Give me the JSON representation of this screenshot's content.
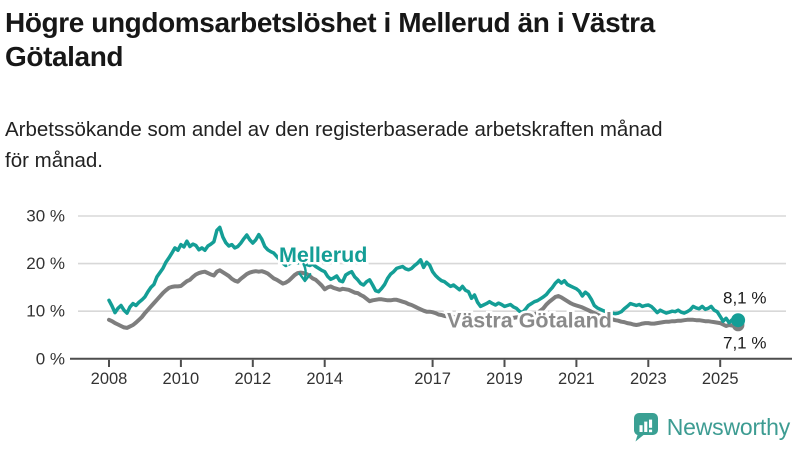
{
  "page": {
    "title_lines": [
      "Högre ungdomsarbetslöshet i Mellerud än i Västra",
      "Götaland"
    ],
    "subtitle_lines": [
      "Arbetssökande som andel av den registerbaserade arbetskraften månad",
      "för månad."
    ]
  },
  "chart_data": {
    "type": "line",
    "title": "Högre ungdomsarbetslöshet i Mellerud än i Västra Götaland",
    "subtitle": "Arbetssökande som andel av den registerbaserade arbetskraften månad för månad.",
    "unit": "%",
    "frequency": "monthly",
    "x_start": "2008-01",
    "x_end": "2025-07",
    "ylim": [
      0,
      30
    ],
    "grid": "horizontal",
    "legend_position": "inline-labels",
    "y_tick_labels": [
      "0 %",
      "10 %",
      "20 %",
      "30 %"
    ],
    "x_tick_years": [
      2008,
      2010,
      2012,
      2014,
      2017,
      2019,
      2021,
      2023,
      2025
    ],
    "x_tick_labels": [
      "2008",
      "2010",
      "2012",
      "2014",
      "2017",
      "2019",
      "2021",
      "2023",
      "2025"
    ],
    "series": [
      {
        "name": "Mellerud",
        "color": "#149e96",
        "end_value": 8.1,
        "end_label": "8,1 %",
        "values": [
          12.3,
          11.1,
          9.7,
          10.6,
          11.2,
          10.2,
          9.6,
          10.9,
          11.6,
          11.2,
          11.9,
          12.4,
          13.0,
          14.1,
          15.0,
          15.6,
          17.2,
          18.1,
          19.0,
          20.3,
          21.2,
          22.2,
          23.3,
          22.8,
          24.0,
          23.5,
          24.7,
          23.6,
          24.1,
          23.8,
          22.9,
          23.3,
          22.8,
          23.7,
          24.1,
          24.6,
          27.0,
          27.6,
          25.6,
          24.4,
          23.7,
          24.0,
          23.3,
          23.6,
          24.3,
          25.2,
          26.0,
          25.0,
          24.3,
          25.0,
          26.1,
          25.1,
          23.6,
          22.9,
          22.5,
          22.2,
          21.5,
          20.8,
          20.1,
          19.6,
          19.9,
          20.2,
          20.5,
          20.1,
          20.8,
          20.4,
          19.8,
          19.6,
          19.9,
          19.4,
          19.0,
          18.6,
          18.3,
          17.3,
          16.7,
          17.0,
          17.4,
          16.4,
          16.2,
          17.6,
          18.0,
          18.3,
          17.2,
          16.6,
          15.8,
          15.5,
          16.2,
          16.6,
          15.5,
          14.3,
          14.1,
          14.8,
          15.6,
          16.9,
          17.8,
          18.3,
          19.0,
          19.2,
          19.4,
          18.9,
          18.7,
          19.0,
          19.6,
          20.1,
          20.8,
          19.2,
          20.3,
          19.7,
          18.3,
          17.5,
          16.9,
          16.4,
          16.2,
          15.7,
          15.2,
          15.5,
          15.0,
          14.5,
          15.2,
          14.4,
          14.1,
          12.7,
          13.4,
          11.9,
          11.0,
          11.3,
          11.6,
          12.0,
          11.6,
          11.3,
          11.7,
          11.4,
          11.0,
          11.2,
          11.4,
          10.9,
          10.6,
          10.0,
          9.7,
          10.4,
          11.2,
          11.6,
          12.0,
          12.2,
          12.6,
          13.0,
          13.5,
          14.3,
          15.0,
          15.9,
          16.5,
          15.9,
          16.4,
          15.6,
          15.3,
          15.0,
          14.7,
          14.2,
          13.2,
          14.0,
          13.5,
          12.5,
          11.2,
          10.7,
          10.4,
          10.1,
          9.9,
          9.7,
          9.6,
          9.5,
          9.6,
          9.9,
          10.5,
          11.0,
          11.6,
          11.4,
          11.2,
          11.4,
          11.0,
          11.2,
          11.3,
          11.0,
          10.4,
          9.7,
          10.2,
          9.9,
          9.6,
          9.8,
          10.0,
          9.9,
          10.2,
          9.8,
          9.6,
          9.9,
          10.3,
          11.0,
          10.7,
          10.5,
          11.0,
          10.4,
          10.6,
          11.0,
          10.2,
          9.9,
          8.9,
          7.9,
          8.5,
          7.6,
          8.2,
          8.0,
          8.1
        ]
      },
      {
        "name": "Västra Götaland",
        "color": "#7e7e7e",
        "end_value": 7.1,
        "end_label": "7,1 %",
        "values": [
          8.2,
          7.9,
          7.5,
          7.2,
          6.9,
          6.6,
          6.5,
          6.8,
          7.1,
          7.6,
          8.2,
          8.8,
          9.6,
          10.3,
          11.0,
          11.7,
          12.4,
          13.1,
          13.8,
          14.4,
          14.9,
          15.1,
          15.2,
          15.2,
          15.3,
          15.8,
          16.3,
          16.6,
          17.2,
          17.7,
          18.0,
          18.2,
          18.3,
          18.0,
          17.7,
          17.5,
          18.3,
          18.6,
          18.2,
          17.8,
          17.4,
          16.8,
          16.4,
          16.2,
          16.8,
          17.3,
          17.8,
          18.1,
          18.3,
          18.4,
          18.3,
          18.4,
          18.2,
          17.9,
          17.4,
          16.9,
          16.6,
          16.2,
          15.8,
          16.0,
          16.4,
          17.0,
          17.6,
          18.0,
          18.1,
          18.0,
          17.8,
          17.4,
          16.9,
          16.6,
          16.0,
          15.4,
          14.6,
          15.0,
          15.2,
          14.9,
          14.7,
          14.5,
          14.7,
          14.6,
          14.5,
          14.2,
          13.9,
          13.8,
          13.4,
          13.1,
          12.6,
          12.1,
          12.3,
          12.4,
          12.5,
          12.5,
          12.4,
          12.3,
          12.3,
          12.4,
          12.4,
          12.2,
          12.0,
          11.8,
          11.5,
          11.3,
          11.0,
          10.7,
          10.4,
          10.1,
          9.9,
          9.9,
          9.8,
          9.6,
          9.3,
          9.2,
          9.0,
          8.9,
          8.8,
          8.8,
          8.7,
          8.7,
          8.8,
          8.8,
          8.7,
          8.6,
          8.5,
          8.5,
          8.4,
          8.4,
          8.5,
          8.5,
          8.5,
          8.5,
          8.6,
          8.6,
          8.6,
          8.6,
          8.6,
          8.6,
          8.7,
          8.7,
          8.8,
          8.9,
          9.0,
          9.1,
          9.3,
          9.6,
          10.1,
          10.6,
          11.4,
          12.0,
          12.5,
          13.0,
          13.2,
          12.9,
          12.5,
          12.1,
          11.7,
          11.4,
          11.2,
          11.0,
          10.8,
          10.5,
          10.2,
          9.9,
          9.6,
          9.3,
          9.0,
          8.8,
          8.6,
          8.4,
          8.3,
          8.1,
          8.0,
          7.8,
          7.7,
          7.5,
          7.4,
          7.2,
          7.1,
          7.2,
          7.4,
          7.5,
          7.5,
          7.4,
          7.4,
          7.5,
          7.6,
          7.7,
          7.8,
          7.8,
          7.9,
          7.9,
          8.0,
          8.0,
          8.1,
          8.2,
          8.2,
          8.2,
          8.1,
          8.1,
          8.0,
          7.9,
          7.9,
          7.8,
          7.7,
          7.6,
          7.5,
          7.2,
          6.9,
          7.1,
          7.0,
          7.0,
          7.1
        ]
      }
    ]
  },
  "logo": {
    "text": "Newsworthy",
    "color": "#3d9c92",
    "icon": "bar-chart-speech-bubble-icon"
  }
}
